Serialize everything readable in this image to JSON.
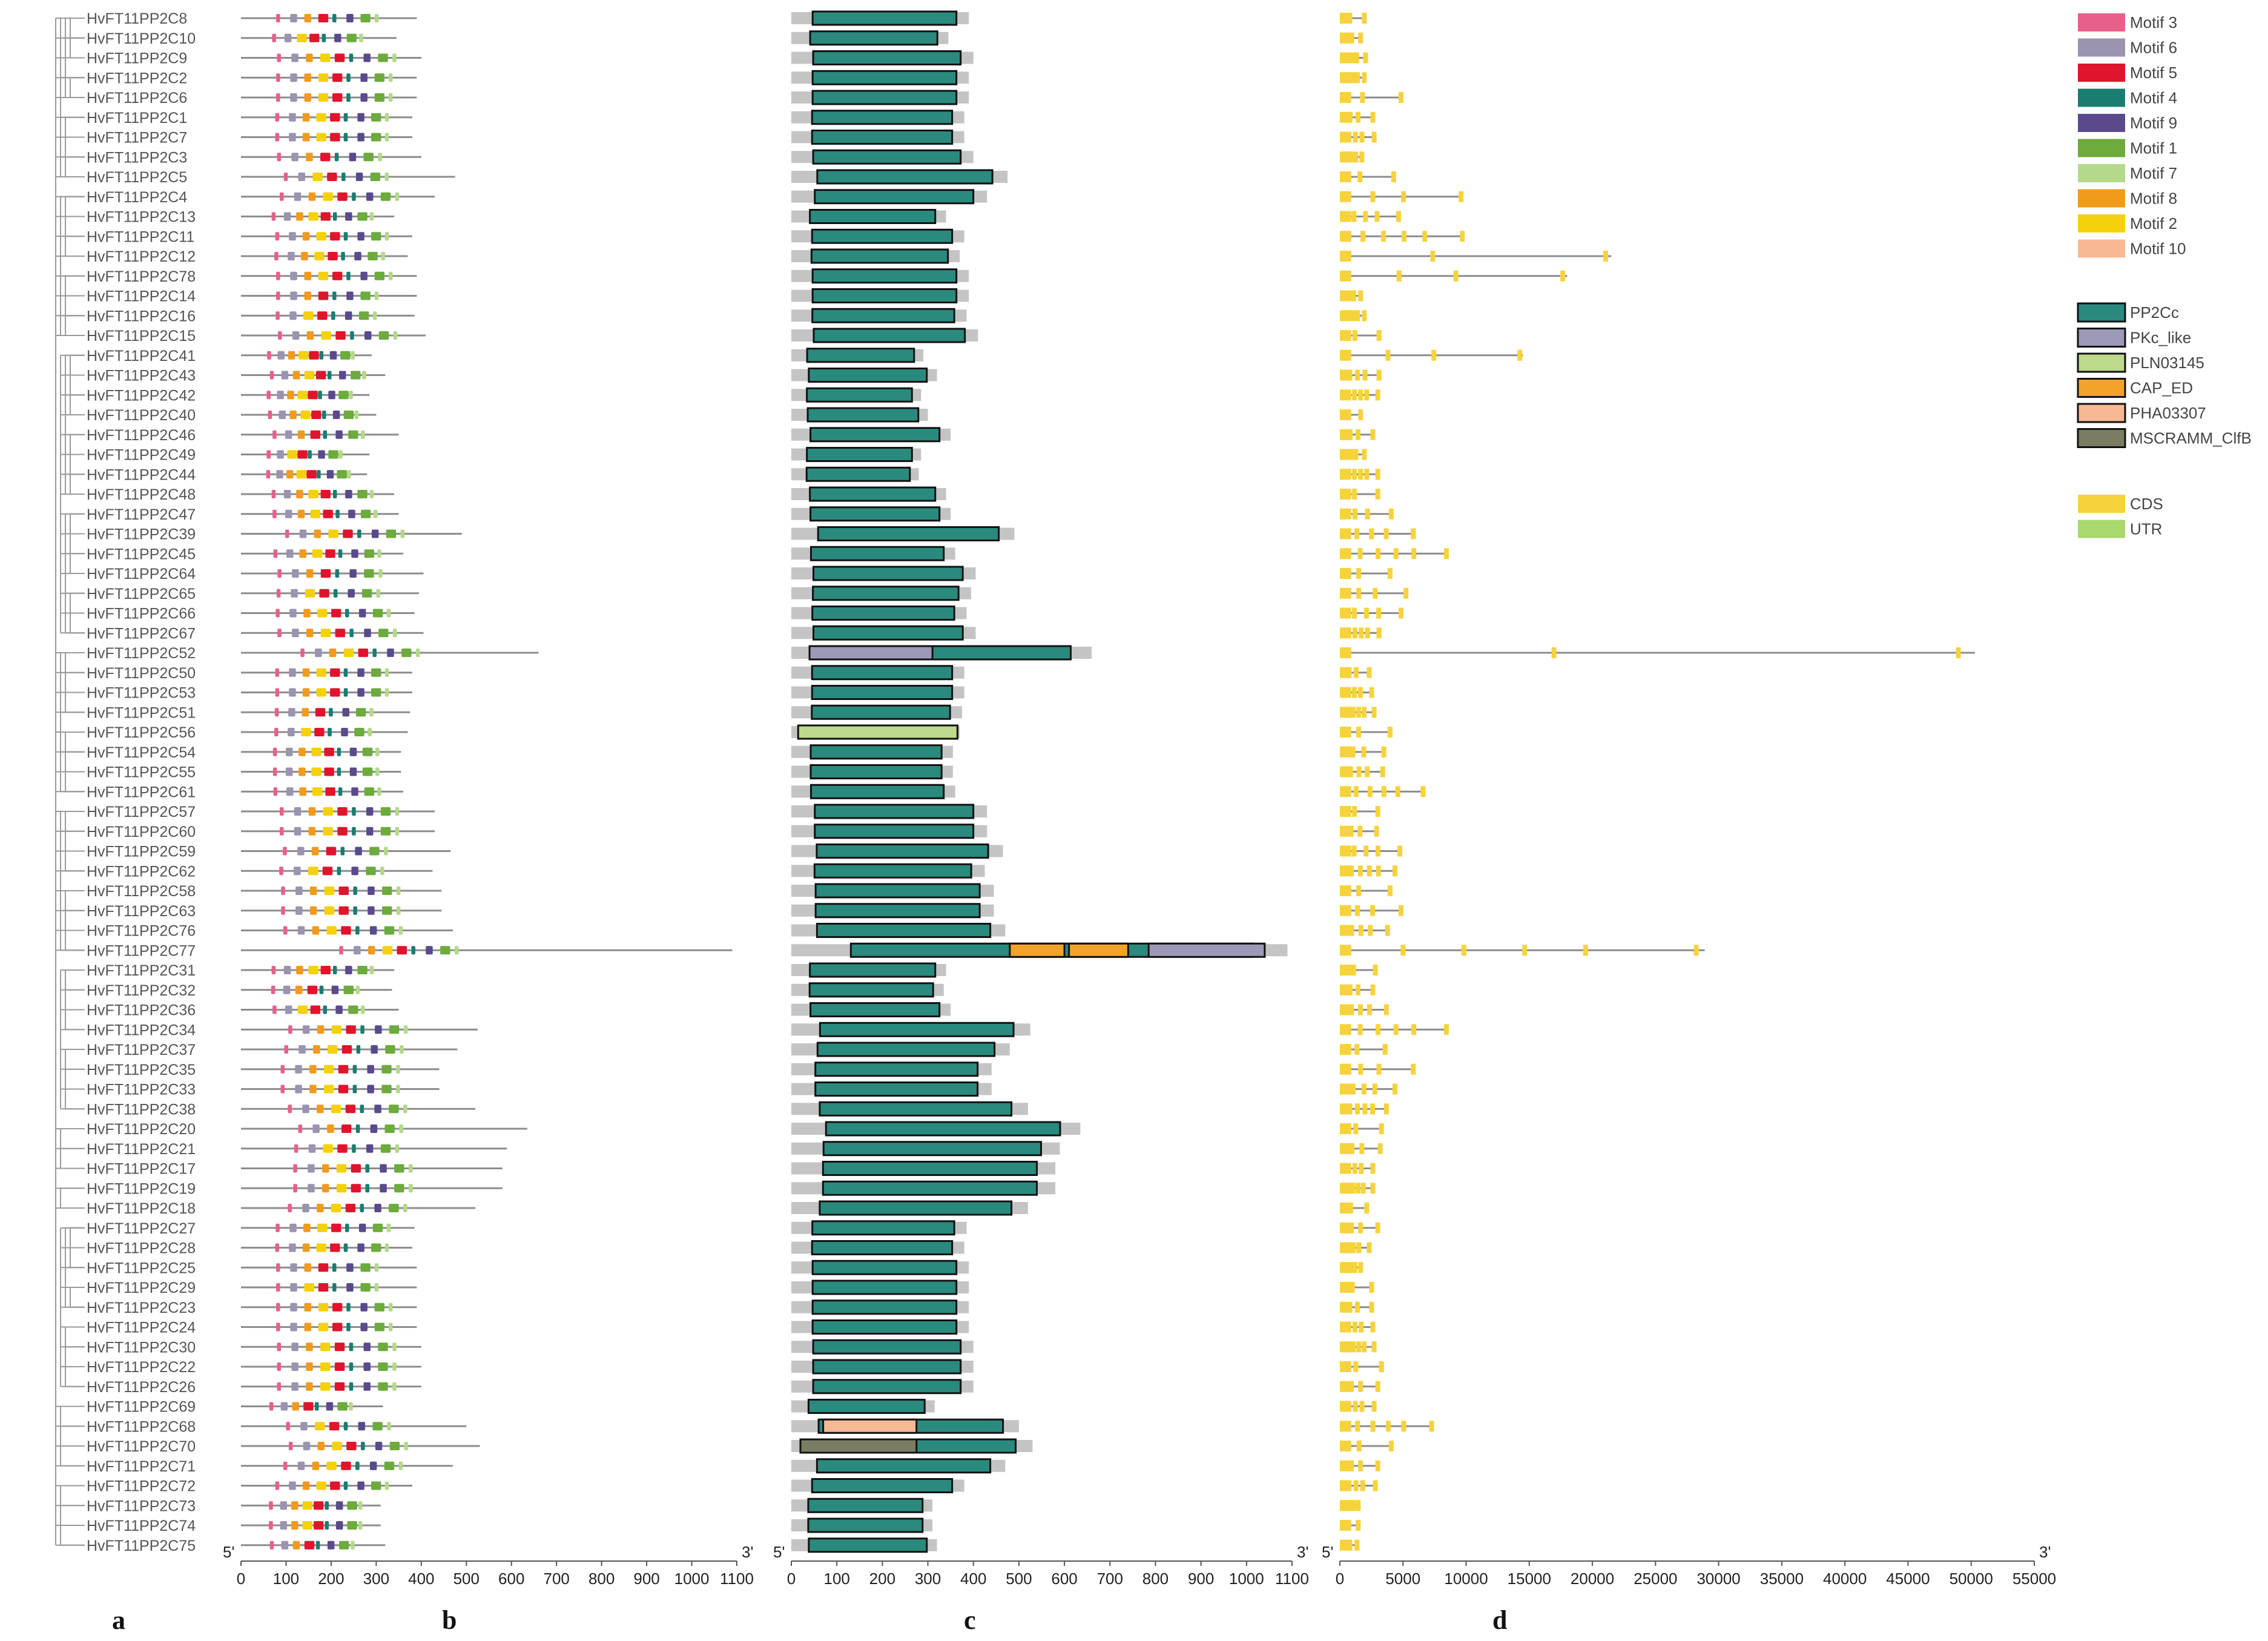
{
  "genes": [
    "HvFT11PP2C8",
    "HvFT11PP2C10",
    "HvFT11PP2C9",
    "HvFT11PP2C2",
    "HvFT11PP2C6",
    "HvFT11PP2C1",
    "HvFT11PP2C7",
    "HvFT11PP2C3",
    "HvFT11PP2C5",
    "HvFT11PP2C4",
    "HvFT11PP2C13",
    "HvFT11PP2C11",
    "HvFT11PP2C12",
    "HvFT11PP2C78",
    "HvFT11PP2C14",
    "HvFT11PP2C16",
    "HvFT11PP2C15",
    "HvFT11PP2C41",
    "HvFT11PP2C43",
    "HvFT11PP2C42",
    "HvFT11PP2C40",
    "HvFT11PP2C46",
    "HvFT11PP2C49",
    "HvFT11PP2C44",
    "HvFT11PP2C48",
    "HvFT11PP2C47",
    "HvFT11PP2C39",
    "HvFT11PP2C45",
    "HvFT11PP2C64",
    "HvFT11PP2C65",
    "HvFT11PP2C66",
    "HvFT11PP2C67",
    "HvFT11PP2C52",
    "HvFT11PP2C50",
    "HvFT11PP2C53",
    "HvFT11PP2C51",
    "HvFT11PP2C56",
    "HvFT11PP2C54",
    "HvFT11PP2C55",
    "HvFT11PP2C61",
    "HvFT11PP2C57",
    "HvFT11PP2C60",
    "HvFT11PP2C59",
    "HvFT11PP2C62",
    "HvFT11PP2C58",
    "HvFT11PP2C63",
    "HvFT11PP2C76",
    "HvFT11PP2C77",
    "HvFT11PP2C31",
    "HvFT11PP2C32",
    "HvFT11PP2C36",
    "HvFT11PP2C34",
    "HvFT11PP2C37",
    "HvFT11PP2C35",
    "HvFT11PP2C33",
    "HvFT11PP2C38",
    "HvFT11PP2C20",
    "HvFT11PP2C21",
    "HvFT11PP2C17",
    "HvFT11PP2C19",
    "HvFT11PP2C18",
    "HvFT11PP2C27",
    "HvFT11PP2C28",
    "HvFT11PP2C25",
    "HvFT11PP2C29",
    "HvFT11PP2C23",
    "HvFT11PP2C24",
    "HvFT11PP2C30",
    "HvFT11PP2C22",
    "HvFT11PP2C26",
    "HvFT11PP2C69",
    "HvFT11PP2C68",
    "HvFT11PP2C70",
    "HvFT11PP2C71",
    "HvFT11PP2C72",
    "HvFT11PP2C73",
    "HvFT11PP2C74",
    "HvFT11PP2C75"
  ],
  "protein_lengths": [
    390,
    345,
    400,
    390,
    390,
    380,
    380,
    400,
    475,
    430,
    340,
    380,
    370,
    390,
    390,
    385,
    410,
    290,
    320,
    285,
    300,
    350,
    285,
    280,
    340,
    350,
    490,
    360,
    405,
    395,
    385,
    405,
    660,
    380,
    380,
    375,
    370,
    355,
    355,
    360,
    430,
    430,
    465,
    425,
    445,
    445,
    470,
    1090,
    340,
    335,
    350,
    525,
    480,
    440,
    440,
    520,
    635,
    590,
    580,
    580,
    520,
    385,
    380,
    390,
    390,
    390,
    390,
    400,
    400,
    400,
    315,
    500,
    530,
    470,
    380,
    310,
    310,
    320
  ],
  "gene_lengths": [
    1800,
    1500,
    1900,
    1800,
    4800,
    2500,
    2600,
    1600,
    4200,
    9700,
    4600,
    9800,
    21500,
    18000,
    1500,
    1800,
    3000,
    14500,
    3000,
    2900,
    1500,
    2500,
    1800,
    2900,
    2900,
    4000,
    5800,
    8500,
    3900,
    5200,
    4800,
    3000,
    50300,
    2200,
    2400,
    2600,
    3900,
    3400,
    3300,
    6600,
    2900,
    2800,
    4700,
    4300,
    3900,
    4800,
    3700,
    28900,
    2700,
    2500,
    3600,
    8500,
    3500,
    5800,
    4300,
    3600,
    3200,
    3100,
    2500,
    2500,
    2000,
    2900,
    2200,
    1500,
    2400,
    2400,
    2500,
    2600,
    3200,
    2900,
    2600,
    7300,
    4000,
    2900,
    2700,
    1300,
    1300,
    1200
  ],
  "panels": {
    "a": "a",
    "b": "b",
    "c": "c",
    "d": "d"
  },
  "axes": {
    "b": {
      "ticks": [
        0,
        100,
        200,
        300,
        400,
        500,
        600,
        700,
        800,
        900,
        1000,
        1100
      ],
      "max": 1100,
      "left_end": "5'",
      "right_end": "3'"
    },
    "c": {
      "ticks": [
        0,
        100,
        200,
        300,
        400,
        500,
        600,
        700,
        800,
        900,
        1000,
        1100
      ],
      "max": 1100,
      "left_end": "5'",
      "right_end": "3'"
    },
    "d": {
      "ticks": [
        0,
        5000,
        10000,
        15000,
        20000,
        25000,
        30000,
        35000,
        40000,
        45000,
        50000,
        55000
      ],
      "max": 55000,
      "left_end": "5'",
      "right_end": "3'"
    }
  },
  "legend_motifs": [
    {
      "label": "Motif 3",
      "color": "#e8608a"
    },
    {
      "label": "Motif 6",
      "color": "#9b93b0"
    },
    {
      "label": "Motif 5",
      "color": "#e0142c"
    },
    {
      "label": "Motif 4",
      "color": "#1a7d72"
    },
    {
      "label": "Motif 9",
      "color": "#5a4a8c"
    },
    {
      "label": "Motif 1",
      "color": "#6cab3c"
    },
    {
      "label": "Motif 7",
      "color": "#b4d98a"
    },
    {
      "label": "Motif 8",
      "color": "#f29a1c"
    },
    {
      "label": "Motif 2",
      "color": "#f5d10c"
    },
    {
      "label": "Motif 10",
      "color": "#f8b894"
    }
  ],
  "legend_domains": [
    {
      "label": "PP2Cc",
      "color": "#2a8a7e"
    },
    {
      "label": "PKc_like",
      "color": "#9d99b8"
    },
    {
      "label": "PLN03145",
      "color": "#bcd98c"
    },
    {
      "label": "CAP_ED",
      "color": "#f3a22a"
    },
    {
      "label": "PHA03307",
      "color": "#f7b894"
    },
    {
      "label": "MSCRAMM_ClfB",
      "color": "#7a7d62"
    }
  ],
  "legend_structure": [
    {
      "label": "CDS",
      "color": "#f6d33c"
    },
    {
      "label": "UTR",
      "color": "#a9d86e"
    }
  ]
}
